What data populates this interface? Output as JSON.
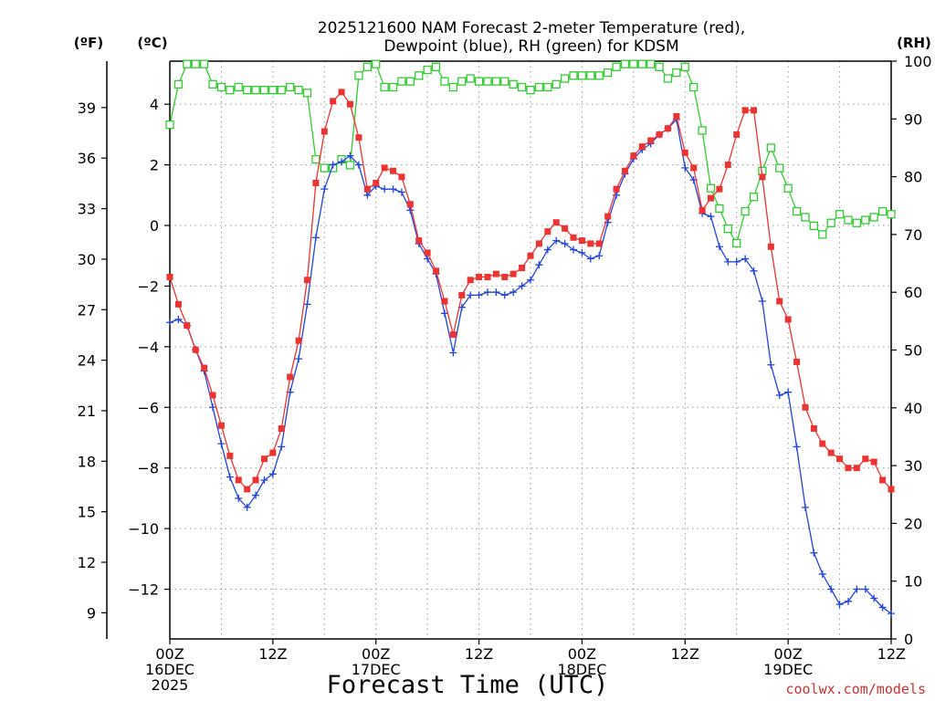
{
  "chart_data": {
    "type": "line",
    "title_line1": "2025121600 NAM Forecast 2-meter Temperature (red),",
    "title_line2": "Dewpoint (blue), RH (green) for KDSM",
    "xlabel": "Forecast Time (UTC)",
    "watermark": "coolwx.com/models",
    "units": {
      "left_outer": "(ºF)",
      "left_inner": "(ºC)",
      "right": "(RH)"
    },
    "x_ticks": [
      {
        "hour": 0,
        "lines": [
          "00Z",
          "16DEC",
          "2025"
        ]
      },
      {
        "hour": 12,
        "lines": [
          "12Z"
        ]
      },
      {
        "hour": 24,
        "lines": [
          "00Z",
          "17DEC"
        ]
      },
      {
        "hour": 36,
        "lines": [
          "12Z"
        ]
      },
      {
        "hour": 48,
        "lines": [
          "00Z",
          "18DEC"
        ]
      },
      {
        "hour": 60,
        "lines": [
          "12Z"
        ]
      },
      {
        "hour": 72,
        "lines": [
          "00Z",
          "19DEC"
        ]
      },
      {
        "hour": 84,
        "lines": [
          "12Z"
        ]
      }
    ],
    "xlim": [
      0,
      84
    ],
    "ylim_celsius": [
      -13.64,
      5.42
    ],
    "ylim_rh": [
      0,
      100
    ],
    "celsius_ticks": [
      4,
      2,
      0,
      -2,
      -4,
      -6,
      -8,
      -10,
      -12
    ],
    "fahrenheit_ticks": [
      39,
      36,
      33,
      30,
      27,
      24,
      21,
      18,
      15,
      12,
      9
    ],
    "rh_ticks": [
      100,
      90,
      80,
      70,
      60,
      50,
      40,
      30,
      20,
      10,
      0
    ],
    "series": [
      {
        "name": "Temperature (°C)",
        "color": "#ee3333",
        "marker": "filled-square",
        "x": [
          0,
          1,
          2,
          3,
          4,
          5,
          6,
          7,
          8,
          9,
          10,
          11,
          12,
          13,
          14,
          15,
          16,
          17,
          18,
          19,
          20,
          21,
          22,
          23,
          24,
          25,
          26,
          27,
          28,
          29,
          30,
          31,
          32,
          33,
          34,
          35,
          36,
          37,
          38,
          39,
          40,
          41,
          42,
          43,
          44,
          45,
          46,
          47,
          48,
          49,
          50,
          51,
          52,
          53,
          54,
          55,
          56,
          57,
          58,
          59,
          60,
          61,
          62,
          63,
          64,
          65,
          66,
          67,
          68,
          69,
          70,
          71,
          72,
          73,
          74,
          75,
          76,
          77,
          78,
          79,
          80,
          81,
          82,
          83,
          84
        ],
        "values": [
          -1.7,
          -2.6,
          -3.3,
          -4.1,
          -4.7,
          -5.6,
          -6.6,
          -7.6,
          -8.4,
          -8.7,
          -8.4,
          -7.7,
          -7.5,
          -6.7,
          -5.0,
          -3.8,
          -1.8,
          1.4,
          3.1,
          4.1,
          4.4,
          4.0,
          2.9,
          1.2,
          1.4,
          1.9,
          1.8,
          1.6,
          0.7,
          -0.5,
          -0.9,
          -1.5,
          -2.5,
          -3.6,
          -2.3,
          -1.8,
          -1.7,
          -1.7,
          -1.6,
          -1.7,
          -1.6,
          -1.4,
          -1.0,
          -0.6,
          -0.2,
          0.1,
          -0.1,
          -0.4,
          -0.5,
          -0.6,
          -0.6,
          0.3,
          1.2,
          1.8,
          2.3,
          2.6,
          2.8,
          3.0,
          3.2,
          3.6,
          2.4,
          1.9,
          0.5,
          0.9,
          1.2,
          2.0,
          3.0,
          3.8,
          3.8,
          1.6,
          -0.7,
          -2.5,
          -3.1,
          -4.5,
          -6.0,
          -6.7,
          -7.2,
          -7.5,
          -7.7,
          -8.0,
          -8.0,
          -7.7,
          -7.8,
          -8.4,
          -8.7
        ]
      },
      {
        "name": "Dewpoint (°C)",
        "color": "#2244dd",
        "marker": "plus",
        "x": [
          0,
          1,
          2,
          3,
          4,
          5,
          6,
          7,
          8,
          9,
          10,
          11,
          12,
          13,
          14,
          15,
          16,
          17,
          18,
          19,
          20,
          21,
          22,
          23,
          24,
          25,
          26,
          27,
          28,
          29,
          30,
          31,
          32,
          33,
          34,
          35,
          36,
          37,
          38,
          39,
          40,
          41,
          42,
          43,
          44,
          45,
          46,
          47,
          48,
          49,
          50,
          51,
          52,
          53,
          54,
          55,
          56,
          57,
          58,
          59,
          60,
          61,
          62,
          63,
          64,
          65,
          66,
          67,
          68,
          69,
          70,
          71,
          72,
          73,
          74,
          75,
          76,
          77,
          78,
          79,
          80,
          81,
          82,
          83,
          84
        ],
        "values": [
          -3.2,
          -3.1,
          -3.3,
          -4.1,
          -4.8,
          -6.0,
          -7.2,
          -8.3,
          -9.0,
          -9.3,
          -8.9,
          -8.4,
          -8.2,
          -7.3,
          -5.5,
          -4.4,
          -2.6,
          -0.4,
          1.2,
          2.0,
          2.1,
          2.3,
          2.0,
          1.0,
          1.3,
          1.2,
          1.2,
          1.1,
          0.5,
          -0.6,
          -1.1,
          -1.6,
          -2.9,
          -4.2,
          -2.7,
          -2.3,
          -2.3,
          -2.2,
          -2.2,
          -2.3,
          -2.2,
          -2.0,
          -1.8,
          -1.3,
          -0.8,
          -0.5,
          -0.6,
          -0.8,
          -0.9,
          -1.1,
          -1.0,
          0.1,
          1.0,
          1.7,
          2.2,
          2.5,
          2.7,
          3.0,
          3.2,
          3.5,
          1.9,
          1.5,
          0.4,
          0.3,
          -0.7,
          -1.2,
          -1.2,
          -1.1,
          -1.5,
          -2.5,
          -4.6,
          -5.6,
          -5.5,
          -7.3,
          -9.3,
          -10.8,
          -11.5,
          -12.0,
          -12.5,
          -12.4,
          -12.0,
          -12.0,
          -12.3,
          -12.6,
          -12.8
        ]
      },
      {
        "name": "RH (%)",
        "color": "#33cc33",
        "marker": "open-square",
        "axis": "right",
        "x": [
          0,
          1,
          2,
          3,
          4,
          5,
          6,
          7,
          8,
          9,
          10,
          11,
          12,
          13,
          14,
          15,
          16,
          17,
          18,
          19,
          20,
          21,
          22,
          23,
          24,
          25,
          26,
          27,
          28,
          29,
          30,
          31,
          32,
          33,
          34,
          35,
          36,
          37,
          38,
          39,
          40,
          41,
          42,
          43,
          44,
          45,
          46,
          47,
          48,
          49,
          50,
          51,
          52,
          53,
          54,
          55,
          56,
          57,
          58,
          59,
          60,
          61,
          62,
          63,
          64,
          65,
          66,
          67,
          68,
          69,
          70,
          71,
          72,
          73,
          74,
          75,
          76,
          77,
          78,
          79,
          80,
          81,
          82,
          83,
          84
        ],
        "values": [
          89,
          96,
          99.5,
          99.5,
          99.5,
          96,
          95.5,
          95,
          95.5,
          95,
          95,
          95,
          95,
          95,
          95.5,
          95,
          94.5,
          83,
          81.5,
          81.5,
          83,
          82,
          97.5,
          99,
          99.5,
          95.5,
          95.5,
          96.5,
          96.5,
          97.5,
          98.5,
          99,
          96.5,
          95.5,
          96.5,
          97,
          96.5,
          96.5,
          96.5,
          96.5,
          96,
          95.5,
          95,
          95.5,
          95.5,
          96,
          97,
          97.5,
          97.5,
          97.5,
          97.5,
          98,
          99,
          99.5,
          99.5,
          99.5,
          99.5,
          99,
          97,
          98,
          99,
          95.5,
          88,
          78,
          74.5,
          71,
          68.5,
          74,
          76.5,
          81,
          85,
          81.5,
          78,
          74,
          73,
          71.5,
          70,
          72,
          73.5,
          72.5,
          72,
          72.5,
          73,
          74,
          73.5
        ]
      }
    ]
  }
}
